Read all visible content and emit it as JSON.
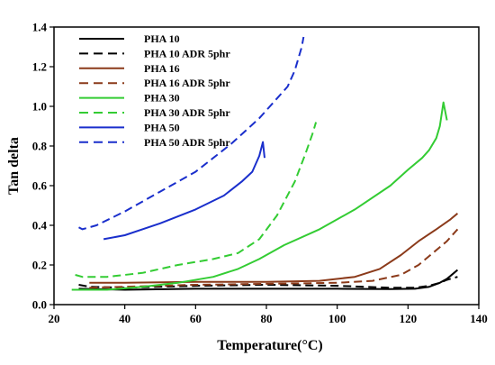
{
  "chart_data": {
    "type": "line",
    "title": "",
    "xlabel": "Temperature(°C)",
    "ylabel": "Tan delta",
    "xlim": [
      20,
      140
    ],
    "ylim": [
      0.0,
      1.4
    ],
    "xticks": [
      "20",
      "40",
      "60",
      "80",
      "100",
      "120",
      "140"
    ],
    "yticks": [
      "0.0",
      "0.2",
      "0.4",
      "0.6",
      "0.8",
      "1.0",
      "1.2",
      "1.4"
    ],
    "grid": false,
    "legend_position": "top-left",
    "series": [
      {
        "name": "PHA 10",
        "color": "#000000",
        "dash": "solid",
        "points": [
          [
            27,
            0.08
          ],
          [
            40,
            0.075
          ],
          [
            60,
            0.08
          ],
          [
            80,
            0.08
          ],
          [
            100,
            0.08
          ],
          [
            115,
            0.078
          ],
          [
            122,
            0.08
          ],
          [
            126,
            0.09
          ],
          [
            129,
            0.11
          ],
          [
            131,
            0.13
          ],
          [
            133,
            0.16
          ],
          [
            134,
            0.175
          ]
        ]
      },
      {
        "name": "PHA 10 ADR 5phr",
        "color": "#000000",
        "dash": "dashed",
        "points": [
          [
            27,
            0.1
          ],
          [
            30,
            0.09
          ],
          [
            40,
            0.085
          ],
          [
            60,
            0.095
          ],
          [
            80,
            0.1
          ],
          [
            100,
            0.095
          ],
          [
            115,
            0.085
          ],
          [
            122,
            0.085
          ],
          [
            126,
            0.095
          ],
          [
            129,
            0.11
          ],
          [
            131,
            0.125
          ],
          [
            134,
            0.14
          ]
        ]
      },
      {
        "name": "PHA 16",
        "color": "#8b3a1a",
        "dash": "solid",
        "points": [
          [
            30,
            0.11
          ],
          [
            40,
            0.11
          ],
          [
            60,
            0.115
          ],
          [
            80,
            0.115
          ],
          [
            95,
            0.12
          ],
          [
            105,
            0.14
          ],
          [
            112,
            0.18
          ],
          [
            118,
            0.25
          ],
          [
            123,
            0.32
          ],
          [
            128,
            0.38
          ],
          [
            132,
            0.43
          ],
          [
            134,
            0.46
          ]
        ]
      },
      {
        "name": "PHA 16 ADR 5phr",
        "color": "#8b3a1a",
        "dash": "dashed",
        "points": [
          [
            30,
            0.085
          ],
          [
            40,
            0.09
          ],
          [
            60,
            0.1
          ],
          [
            80,
            0.105
          ],
          [
            100,
            0.11
          ],
          [
            110,
            0.12
          ],
          [
            118,
            0.15
          ],
          [
            123,
            0.2
          ],
          [
            127,
            0.26
          ],
          [
            131,
            0.32
          ],
          [
            134,
            0.38
          ]
        ]
      },
      {
        "name": "PHA 30",
        "color": "#33cc33",
        "dash": "solid",
        "points": [
          [
            25,
            0.075
          ],
          [
            35,
            0.075
          ],
          [
            45,
            0.09
          ],
          [
            55,
            0.11
          ],
          [
            65,
            0.14
          ],
          [
            72,
            0.18
          ],
          [
            78,
            0.23
          ],
          [
            85,
            0.3
          ],
          [
            95,
            0.38
          ],
          [
            105,
            0.48
          ],
          [
            115,
            0.6
          ],
          [
            120,
            0.68
          ],
          [
            124,
            0.74
          ],
          [
            126,
            0.78
          ],
          [
            128,
            0.84
          ],
          [
            129,
            0.9
          ],
          [
            130,
            1.02
          ],
          [
            131,
            0.93
          ]
        ]
      },
      {
        "name": "PHA 30 ADR 5phr",
        "color": "#33cc33",
        "dash": "dashed",
        "points": [
          [
            26,
            0.15
          ],
          [
            28,
            0.14
          ],
          [
            35,
            0.14
          ],
          [
            45,
            0.16
          ],
          [
            55,
            0.2
          ],
          [
            65,
            0.23
          ],
          [
            72,
            0.26
          ],
          [
            78,
            0.33
          ],
          [
            83,
            0.45
          ],
          [
            88,
            0.62
          ],
          [
            91,
            0.76
          ],
          [
            93,
            0.86
          ],
          [
            94,
            0.92
          ]
        ]
      },
      {
        "name": "PHA 50",
        "color": "#1a2fcc",
        "dash": "solid",
        "points": [
          [
            34,
            0.33
          ],
          [
            40,
            0.35
          ],
          [
            50,
            0.41
          ],
          [
            60,
            0.48
          ],
          [
            68,
            0.55
          ],
          [
            73,
            0.62
          ],
          [
            76,
            0.67
          ],
          [
            78,
            0.75
          ],
          [
            79,
            0.82
          ],
          [
            79.5,
            0.74
          ]
        ]
      },
      {
        "name": "PHA 50 ADR 5phr",
        "color": "#1a2fcc",
        "dash": "dashed",
        "points": [
          [
            27,
            0.39
          ],
          [
            28,
            0.38
          ],
          [
            32,
            0.4
          ],
          [
            40,
            0.47
          ],
          [
            50,
            0.57
          ],
          [
            60,
            0.67
          ],
          [
            70,
            0.81
          ],
          [
            78,
            0.94
          ],
          [
            83,
            1.04
          ],
          [
            86,
            1.1
          ],
          [
            88,
            1.18
          ],
          [
            89,
            1.24
          ],
          [
            90,
            1.3
          ],
          [
            90.5,
            1.35
          ]
        ]
      }
    ]
  }
}
